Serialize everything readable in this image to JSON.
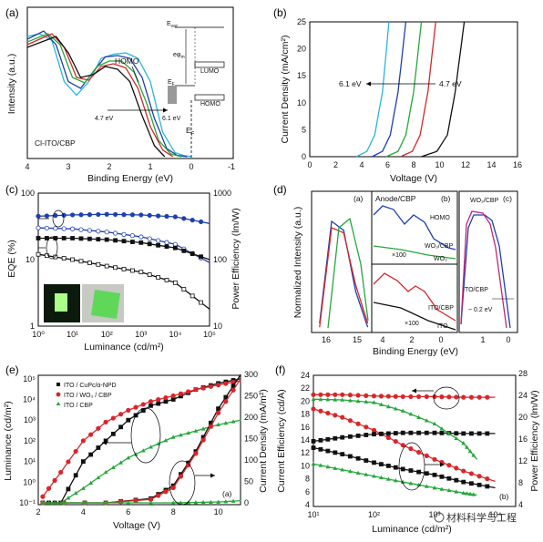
{
  "colors": {
    "cyan": "#2ab6d8",
    "blue": "#1f3fb0",
    "green": "#25a83a",
    "red": "#d8262a",
    "black": "#111111",
    "magenta": "#c2257a",
    "gray": "#777777"
  },
  "panels": {
    "a": {
      "letter": "(a)",
      "xlabel": "Binding Energy (eV)",
      "ylabel": "Intensity (a.u.)",
      "xticks": [
        "4",
        "3",
        "2",
        "1",
        "0",
        "-1"
      ],
      "sample": "Cl-ITO/CBP",
      "homo": "HOMO",
      "lumo": "LUMO",
      "homo_box": "HOMO",
      "e_left": "4.7 eV",
      "e_right": "6.1 eV",
      "ef": "E",
      "ef_sub": "F",
      "evac": "E",
      "evac_sub": "vac",
      "ephi": "eφ",
      "ephi_sub": "m",
      "ef2": "E",
      "ef2_sub": "F"
    },
    "b": {
      "letter": "(b)",
      "xlabel": "Voltage (V)",
      "ylabel": "Current Density (mA/cm²)",
      "xticks": [
        "0",
        "2",
        "4",
        "6",
        "8",
        "10",
        "12",
        "14",
        "16"
      ],
      "yticks": [
        "0",
        "5",
        "10",
        "15",
        "20",
        "25"
      ],
      "e_left": "6.1 eV",
      "e_right": "4.7 eV"
    },
    "c": {
      "letter": "(c)",
      "xlabel": "Luminance (cd/m²)",
      "ylabel_left": "EQE (%)",
      "ylabel_right": "Power Efficiency (lm/W)",
      "xticks": [
        "10⁰",
        "10¹",
        "10²",
        "10³",
        "10⁴",
        "10⁵"
      ],
      "yticks_left": [
        "1",
        "10",
        "100"
      ],
      "yticks_right": [
        "10",
        "100",
        "1000"
      ]
    },
    "d": {
      "letter": "(d)",
      "title": "Anode/CBP",
      "xlabel": "Binding Energy (eV)",
      "ylabel": "Normalized Intensity (a.u.)",
      "sub_a": "(a)",
      "sub_b": "(b)",
      "sub_c": "(c)",
      "homo": "HOMO",
      "wo3cbp": "WO₃/CBP",
      "wo3": "WO₃",
      "x100a": "×100",
      "x100b": "×100",
      "itocbp": "ITO/CBP",
      "ito": "ITO",
      "wo3cbp_c": "WO₃/CBP",
      "itocbp_c": "ITO/CBP",
      "shift": "~ 0.2 eV",
      "xticks_a": [
        "16",
        "15"
      ],
      "xticks_b": [
        "4",
        "2",
        "0"
      ],
      "xticks_c": [
        "1",
        "0"
      ]
    },
    "e": {
      "letter": "(e)",
      "sub": "(a)",
      "xlabel": "Voltage (V)",
      "ylabel_left": "Luminance (cd/m²)",
      "ylabel_right": "Current Density (mA/m²)",
      "xticks": [
        "2",
        "4",
        "6",
        "8",
        "10"
      ],
      "yticks_left": [
        "10⁻¹",
        "10⁰",
        "10¹",
        "10²",
        "10³",
        "10⁴",
        "10⁵"
      ],
      "yticks_right": [
        "0",
        "50",
        "100",
        "150",
        "200",
        "250",
        "300"
      ],
      "legend": [
        "ITO / CuPc/α-NPD",
        "ITO / WO₃ / CBP",
        "ITO / CBP"
      ]
    },
    "f": {
      "letter": "(f)",
      "sub": "(b)",
      "xlabel": "Luminance (cd/m²)",
      "ylabel_left": "Current Efficiency (cd/A)",
      "ylabel_right": "Power Efficiency (lm/W)",
      "xticks": [
        "10¹",
        "10²",
        "10³",
        "10⁴"
      ],
      "yticks_left": [
        "4",
        "6",
        "8",
        "10",
        "12",
        "14",
        "16",
        "18",
        "20",
        "22",
        "24"
      ],
      "yticks_right": [
        "4",
        "8",
        "12",
        "16",
        "20",
        "24",
        "28"
      ]
    }
  },
  "watermark": "材料科学与工程",
  "chart_data": [
    {
      "panel": "a",
      "type": "line",
      "title": "",
      "xlabel": "Binding Energy (eV)",
      "ylabel": "Intensity (a.u.)",
      "xlim": [
        4,
        -1
      ],
      "series": [
        {
          "name": "6.1 eV",
          "x": [
            4,
            3.7,
            3.4,
            3.1,
            2.8,
            2.5,
            2.2,
            1.9,
            1.6,
            1.3,
            1.0,
            0.7,
            0.4,
            0.2,
            0
          ],
          "y": [
            0.88,
            0.9,
            0.85,
            0.55,
            0.45,
            0.55,
            0.72,
            0.75,
            0.76,
            0.72,
            0.55,
            0.18,
            0.03,
            0.01,
            0
          ]
        },
        {
          "name": "",
          "x": [
            4,
            3.6,
            3.3,
            3.0,
            2.7,
            2.4,
            2.1,
            1.8,
            1.5,
            1.2,
            0.9,
            0.6,
            0.35,
            0.1
          ],
          "y": [
            0.86,
            0.92,
            0.82,
            0.55,
            0.5,
            0.62,
            0.73,
            0.74,
            0.72,
            0.58,
            0.28,
            0.06,
            0.01,
            0
          ]
        },
        {
          "name": "",
          "x": [
            4,
            3.5,
            3.2,
            2.9,
            2.6,
            2.3,
            2.0,
            1.7,
            1.4,
            1.1,
            0.8,
            0.5,
            0.25
          ],
          "y": [
            0.84,
            0.9,
            0.82,
            0.58,
            0.54,
            0.66,
            0.7,
            0.7,
            0.62,
            0.4,
            0.12,
            0.02,
            0
          ]
        },
        {
          "name": "",
          "x": [
            4,
            3.4,
            3.1,
            2.8,
            2.5,
            2.2,
            1.9,
            1.6,
            1.3,
            1.0,
            0.7,
            0.45
          ],
          "y": [
            0.82,
            0.9,
            0.8,
            0.58,
            0.56,
            0.66,
            0.68,
            0.65,
            0.5,
            0.22,
            0.05,
            0
          ]
        },
        {
          "name": "4.7 eV",
          "x": [
            4,
            3.3,
            3.0,
            2.7,
            2.4,
            2.1,
            1.8,
            1.5,
            1.2,
            0.9,
            0.65
          ],
          "y": [
            0.8,
            0.88,
            0.76,
            0.58,
            0.6,
            0.66,
            0.64,
            0.55,
            0.3,
            0.08,
            0
          ]
        }
      ]
    },
    {
      "panel": "b",
      "type": "line",
      "title": "",
      "xlabel": "Voltage (V)",
      "ylabel": "Current Density (mA/cm²)",
      "xlim": [
        0,
        16
      ],
      "ylim": [
        0,
        25
      ],
      "series": [
        {
          "name": "6.1 eV",
          "x": [
            3.6,
            4.4,
            5.0,
            5.6,
            6.1
          ],
          "y": [
            0,
            1,
            4,
            12,
            25
          ]
        },
        {
          "name": "",
          "x": [
            4.8,
            5.6,
            6.2,
            6.8,
            7.4
          ],
          "y": [
            0,
            1,
            4,
            12,
            25
          ]
        },
        {
          "name": "",
          "x": [
            5.9,
            6.8,
            7.4,
            8.0,
            8.6
          ],
          "y": [
            0,
            1,
            4,
            12,
            25
          ]
        },
        {
          "name": "",
          "x": [
            7.0,
            7.9,
            8.5,
            9.1,
            9.7
          ],
          "y": [
            0,
            1,
            4,
            12,
            25
          ]
        },
        {
          "name": "4.7 eV",
          "x": [
            8.6,
            9.8,
            10.6,
            11.2,
            11.9
          ],
          "y": [
            0,
            1,
            4,
            12,
            25
          ]
        }
      ]
    },
    {
      "panel": "c",
      "type": "line",
      "title": "",
      "xlabel": "Luminance (cd/m²)",
      "ylabel": "EQE (%)",
      "xlim": [
        1,
        100000
      ],
      "ylim": [
        1,
        100
      ],
      "series": [
        {
          "name": "",
          "x": [
            1,
            10,
            100,
            1000,
            10000,
            100000
          ],
          "y": [
            45,
            47,
            48,
            47,
            44,
            35
          ]
        },
        {
          "name": "",
          "x": [
            1,
            10,
            100,
            1000,
            10000,
            100000
          ],
          "y": [
            30,
            29,
            26,
            22,
            17,
            9
          ]
        },
        {
          "name": "",
          "x": [
            1,
            10,
            100,
            1000,
            10000,
            100000
          ],
          "y": [
            21,
            21,
            20,
            18,
            15,
            10
          ]
        },
        {
          "name": "",
          "x": [
            1,
            10,
            100,
            1000,
            10000,
            100000
          ],
          "y": [
            12,
            10,
            8,
            6.5,
            4.5,
            1.8
          ]
        }
      ]
    },
    {
      "panel": "d",
      "type": "line",
      "title": "Anode/CBP",
      "xlabel": "Binding Energy (eV)",
      "ylabel": "Normalized Intensity (a.u.)",
      "series": [
        {
          "name": "WO₃/CBP",
          "x": [
            16.2,
            15.9,
            15.6,
            15.3,
            15.0
          ],
          "y": [
            0.05,
            0.85,
            0.78,
            0.3,
            0.02
          ]
        },
        {
          "name": "ITO/CBP",
          "x": [
            16.2,
            15.9,
            15.6,
            15.3,
            15.0
          ],
          "y": [
            0.02,
            0.8,
            0.76,
            0.35,
            0.05
          ]
        }
      ]
    },
    {
      "panel": "e",
      "type": "line",
      "title": "",
      "xlabel": "Voltage (V)",
      "ylabel": "Luminance (cd/m²)",
      "xlim": [
        2,
        11
      ],
      "ylim": [
        0.1,
        100000
      ],
      "series": [
        {
          "name": "ITO / CuPc/α-NPD",
          "x": [
            2.2,
            3,
            4,
            5,
            6,
            7,
            8,
            9,
            10,
            11
          ],
          "y": [
            0.1,
            0.1,
            10,
            100,
            1000,
            5000,
            10000,
            30000,
            60000,
            100000
          ]
        },
        {
          "name": "ITO / WO₃ / CBP",
          "x": [
            2.2,
            3,
            4,
            5,
            6,
            7,
            8,
            9,
            10,
            11
          ],
          "y": [
            0.2,
            3,
            100,
            800,
            3000,
            8000,
            15000,
            30000,
            50000,
            80000
          ]
        },
        {
          "name": "ITO / CBP",
          "x": [
            2.2,
            3,
            4,
            5,
            6,
            7,
            8,
            9,
            10,
            11
          ],
          "y": [
            0.1,
            0.1,
            0.5,
            3,
            15,
            50,
            150,
            300,
            600,
            1000
          ]
        }
      ]
    },
    {
      "panel": "f",
      "type": "line",
      "title": "",
      "xlabel": "Luminance (cd/m²)",
      "ylabel": "Current Efficiency (cd/A)",
      "xlim": [
        10,
        20000
      ],
      "ylim": [
        4,
        24
      ],
      "series": [
        {
          "name": "",
          "x": [
            10,
            30,
            100,
            300,
            1000,
            3000,
            10000
          ],
          "y": [
            21,
            21,
            20.8,
            20.7,
            20.7,
            20.6,
            20.6
          ]
        },
        {
          "name": "",
          "x": [
            10,
            30,
            100,
            300,
            1000,
            3000,
            10000
          ],
          "y": [
            18.8,
            17.5,
            15.5,
            13.2,
            11,
            9.2,
            7.6
          ]
        },
        {
          "name": "",
          "x": [
            10,
            30,
            100,
            300,
            1000,
            3000,
            10000
          ],
          "y": [
            13.8,
            14.4,
            14.9,
            15.1,
            15.1,
            15,
            15
          ]
        },
        {
          "name": "",
          "x": [
            10,
            30,
            100,
            300,
            1000,
            3000,
            10000
          ],
          "y": [
            12.8,
            11.8,
            10.5,
            9.5,
            8.6,
            7.5,
            6.6
          ]
        },
        {
          "name": "",
          "x": [
            10,
            30,
            100,
            300,
            1000,
            3000,
            5000
          ],
          "y": [
            20.3,
            20.2,
            19.8,
            18.5,
            16.5,
            13.5,
            11
          ]
        },
        {
          "name": "",
          "x": [
            10,
            30,
            100,
            300,
            1000,
            3000,
            5000
          ],
          "y": [
            10.3,
            9.4,
            8.4,
            7.5,
            6.6,
            5.8,
            5.5
          ]
        }
      ]
    }
  ]
}
